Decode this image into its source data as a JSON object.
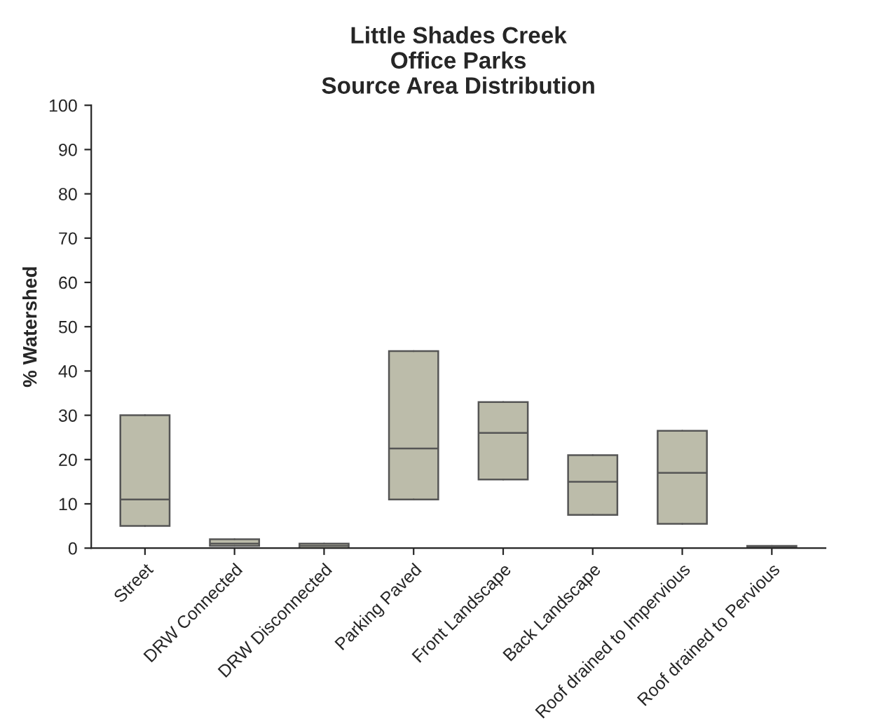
{
  "chart_data": {
    "type": "box",
    "title": "Little Shades Creek\nOffice Parks\nSource Area Distribution",
    "ylabel": "% Watershed",
    "categories": [
      "Street",
      "DRW Connected",
      "DRW Disconnected",
      "Parking Paved",
      "Front Landscape",
      "Back Landscape",
      "Roof drained to Impervious",
      "Roof drained to Pervious"
    ],
    "boxes": [
      {
        "low": 5,
        "q1": 5,
        "median": 11,
        "q3": 30,
        "high": 30
      },
      {
        "low": 0.5,
        "q1": 0.5,
        "median": 1,
        "q3": 2,
        "high": 2
      },
      {
        "low": 0,
        "q1": 0,
        "median": 0.5,
        "q3": 1,
        "high": 1
      },
      {
        "low": 11,
        "q1": 11,
        "median": 22.5,
        "q3": 44.5,
        "high": 44.5
      },
      {
        "low": 15.5,
        "q1": 15.5,
        "median": 26,
        "q3": 33,
        "high": 33
      },
      {
        "low": 7.5,
        "q1": 7.5,
        "median": 15,
        "q3": 21,
        "high": 21
      },
      {
        "low": 5.5,
        "q1": 5.5,
        "median": 17,
        "q3": 26.5,
        "high": 26.5
      },
      {
        "low": 0,
        "q1": 0,
        "median": 0.2,
        "q3": 0.5,
        "high": 0.5
      }
    ],
    "color": "#bcbcaa",
    "ylim": [
      0,
      100
    ],
    "yticks": [
      0,
      10,
      20,
      30,
      40,
      50,
      60,
      70,
      80,
      90,
      100
    ],
    "grid": false
  }
}
